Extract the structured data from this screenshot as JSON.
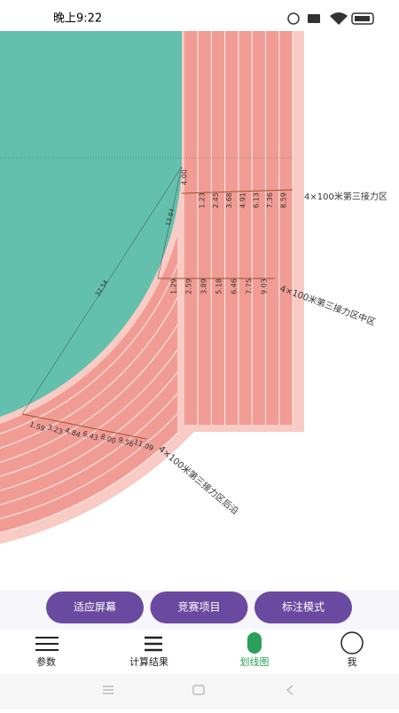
{
  "status_bar": {
    "time": "晚上9:22"
  },
  "diagram": {
    "radius_labels": [
      "4.00",
      "13.84",
      "32.54"
    ],
    "relay_rows": [
      {
        "label": "4×100米第三接力区",
        "marks": [
          "1.23",
          "2.45",
          "3.68",
          "4.91",
          "6.13",
          "7.36",
          "8.59"
        ]
      },
      {
        "label": "4×100米第三接力区中区",
        "marks": [
          "1.29",
          "2.59",
          "3.89",
          "5.18",
          "6.46",
          "7.75",
          "9.03"
        ]
      },
      {
        "label": "4×100米第三接力区后沿",
        "marks": [
          "1.59",
          "3.23",
          "4.84",
          "6.43",
          "8.00",
          "9.56",
          "11.09"
        ]
      }
    ]
  },
  "buttons": [
    "适应屏幕",
    "竞赛项目",
    "标注模式"
  ],
  "tabs": [
    "参数",
    "计算结果",
    "划线图",
    "我"
  ]
}
